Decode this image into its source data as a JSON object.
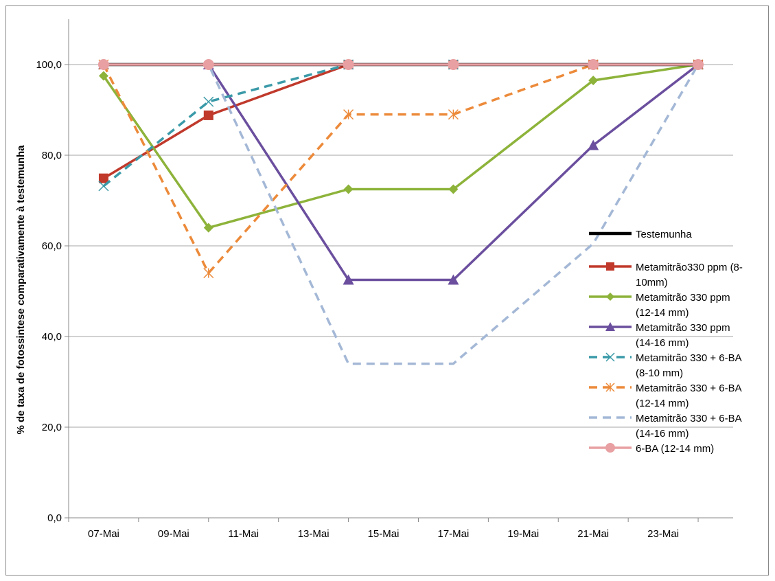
{
  "chart_data": {
    "type": "line",
    "title": "",
    "xlabel": "",
    "ylabel": "% de taxa de fotossintese comparativamente  à testemunha",
    "ylim": [
      0,
      110
    ],
    "y_ticks": [
      "0,0",
      "20,0",
      "40,0",
      "60,0",
      "80,0",
      "100,0"
    ],
    "x_ticks": [
      "07-Mai",
      "09-Mai",
      "11-Mai",
      "13-Mai",
      "15-Mai",
      "17-Mai",
      "19-Mai",
      "21-Mai",
      "23-Mai"
    ],
    "x_range": [
      "2000-05-06",
      "2000-05-25"
    ],
    "x": [
      "2000-05-07",
      "2000-05-10",
      "2000-05-14",
      "2000-05-17",
      "2000-05-21",
      "2000-05-24"
    ],
    "grid": "horizontal",
    "legend_position": "right",
    "series": [
      {
        "name": "Testemunha",
        "values": [
          100,
          100,
          100,
          100,
          100,
          100
        ],
        "color": "#000000",
        "dash": "solid",
        "marker": "none"
      },
      {
        "name": "Metamitrão330 ppm  (8-10mm)",
        "legend_lines": [
          "Metamitrão330 ppm  (8-",
          "10mm)"
        ],
        "values": [
          74.9,
          88.8,
          100,
          100,
          100,
          100
        ],
        "color": "#c0392b",
        "dash": "solid",
        "marker": "square"
      },
      {
        "name": "Metamitrão 330 ppm (12-14 mm)",
        "legend_lines": [
          "Metamitrão 330 ppm",
          "(12-14 mm)"
        ],
        "values": [
          97.5,
          64.0,
          72.5,
          72.5,
          96.5,
          100
        ],
        "color": "#8db33a",
        "dash": "solid",
        "marker": "diamond"
      },
      {
        "name": "Metamitrão 330 ppm (14-16 mm)",
        "legend_lines": [
          "Metamitrão 330 ppm",
          "(14-16 mm)"
        ],
        "values": [
          100,
          100,
          52.5,
          52.5,
          82.2,
          100
        ],
        "color": "#6b4f9e",
        "dash": "solid",
        "marker": "triangle"
      },
      {
        "name": "Metamitrão 330 + 6-BA (8-10 mm)",
        "legend_lines": [
          "Metamitrão 330 + 6-BA",
          "(8-10 mm)"
        ],
        "values": [
          73.2,
          91.8,
          100,
          100,
          100,
          100
        ],
        "color": "#3b9aa8",
        "dash": "dashed",
        "marker": "x"
      },
      {
        "name": "Metamitrão 330 + 6-BA (12-14 mm)",
        "legend_lines": [
          "Metamitrão 330 + 6-BA",
          "(12-14 mm)"
        ],
        "values": [
          100,
          54.0,
          89.0,
          89.0,
          100,
          100
        ],
        "color": "#ec8a3a",
        "dash": "dashed",
        "marker": "star"
      },
      {
        "name": "Metamitrão 330 + 6-BA (14-16 mm)",
        "legend_lines": [
          "Metamitrão 330 + 6-BA",
          "(14-16 mm)"
        ],
        "values": [
          100,
          100,
          34.0,
          34.0,
          60.5,
          100
        ],
        "color": "#a4b8d6",
        "dash": "dashed",
        "marker": "none"
      },
      {
        "name": "6-BA (12-14 mm)",
        "values": [
          100,
          100,
          100,
          100,
          100,
          100
        ],
        "color": "#e8a0a2",
        "dash": "solid",
        "marker": "circle"
      }
    ]
  }
}
